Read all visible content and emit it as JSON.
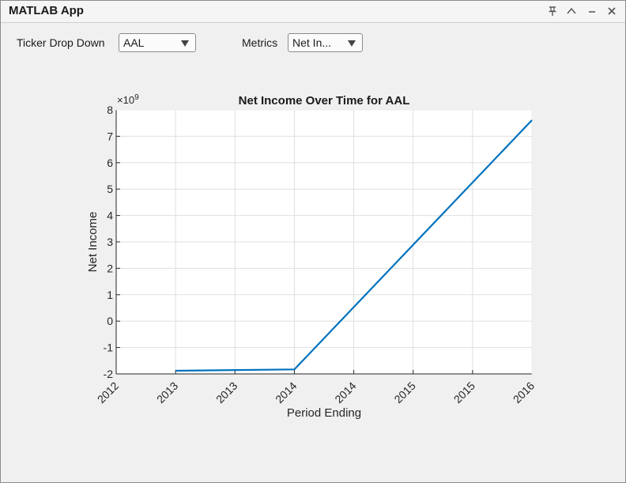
{
  "window": {
    "title": "MATLAB App"
  },
  "titlebar": {
    "pin_icon": "pin-icon",
    "collapse_icon": "chevron-up-icon",
    "minimize_icon": "minimize-icon",
    "close_icon": "close-icon"
  },
  "controls": {
    "ticker_label": "Ticker Drop Down",
    "ticker_value": "AAL",
    "metrics_label": "Metrics",
    "metrics_value": "Net In..."
  },
  "chart_data": {
    "type": "line",
    "title": "Net Income Over Time for AAL",
    "xlabel": "Period Ending",
    "ylabel": "Net Income",
    "y_exponent_label": "×10",
    "y_exponent": "9",
    "x_tick_labels": [
      "2012",
      "2013",
      "2013",
      "2014",
      "2014",
      "2015",
      "2015",
      "2016"
    ],
    "y_ticks": [
      -2,
      -1,
      0,
      1,
      2,
      3,
      4,
      5,
      6,
      7,
      8
    ],
    "ylim": [
      -2,
      8
    ],
    "xlim": [
      0,
      7
    ],
    "grid": true,
    "series": [
      {
        "color": "#0072bd",
        "x": [
          1,
          3,
          7
        ],
        "values": [
          -1.88,
          -1.83,
          7.61
        ]
      }
    ]
  }
}
